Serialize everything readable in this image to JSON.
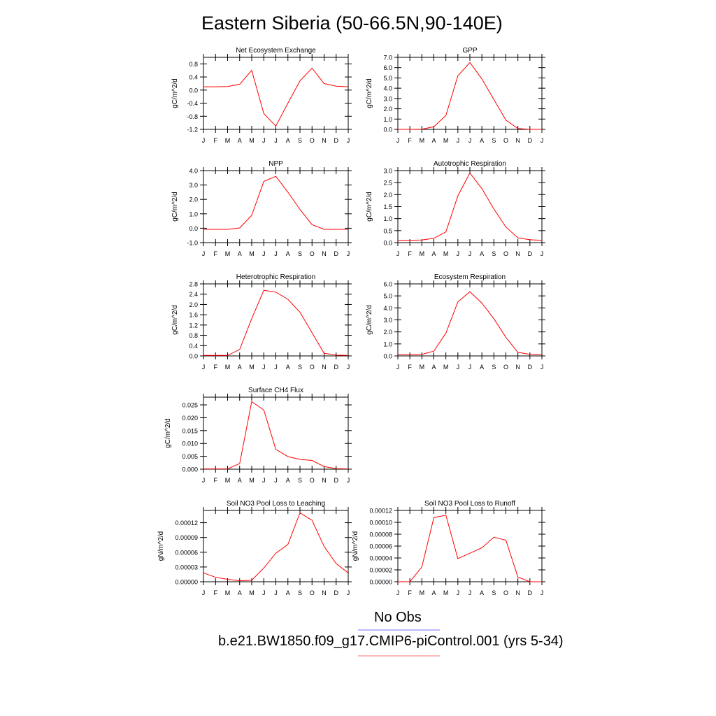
{
  "title": "Eastern Siberia (50-66.5N,90-140E)",
  "month_labels": [
    "J",
    "F",
    "M",
    "A",
    "M",
    "J",
    "J",
    "A",
    "S",
    "O",
    "N",
    "D",
    "J"
  ],
  "legend": {
    "items": [
      {
        "label": "No Obs",
        "color": "#0000ff"
      },
      {
        "label": "b.e21.BW1850.f09_g17.CMIP6-piControl.001 (yrs 5-34)",
        "color": "#ff0000"
      }
    ]
  },
  "chart_data": [
    {
      "type": "line",
      "title": "Net Ecosystem Exchange",
      "ylabel": "gC/m^2/d",
      "ylim": [
        -1.2,
        1.0
      ],
      "yticks": [
        -1.2,
        -0.8,
        -0.4,
        0.0,
        0.4,
        0.8
      ],
      "ytick_labels": [
        "-1.2",
        "-0.8",
        "-0.4",
        "0.0",
        "0.4",
        "0.8"
      ],
      "series": [
        {
          "color": "#ff0000",
          "values": [
            0.1,
            0.1,
            0.11,
            0.18,
            0.6,
            -0.72,
            -1.1,
            -0.4,
            0.28,
            0.67,
            0.2,
            0.12,
            0.1
          ]
        }
      ]
    },
    {
      "type": "line",
      "title": "GPP",
      "ylabel": "gC/m^2/d",
      "ylim": [
        0.0,
        7.0
      ],
      "yticks": [
        0,
        1,
        2,
        3,
        4,
        5,
        6,
        7
      ],
      "ytick_labels": [
        "0.0",
        "1.0",
        "2.0",
        "3.0",
        "4.0",
        "5.0",
        "6.0",
        "7.0"
      ],
      "series": [
        {
          "color": "#ff0000",
          "values": [
            0.0,
            0.0,
            0.02,
            0.25,
            1.35,
            5.2,
            6.5,
            4.9,
            2.9,
            0.9,
            0.08,
            0.0,
            0.0
          ]
        }
      ]
    },
    {
      "type": "line",
      "title": "NPP",
      "ylabel": "gC/m^2/d",
      "ylim": [
        -1.0,
        4.0
      ],
      "yticks": [
        -1,
        0,
        1,
        2,
        3,
        4
      ],
      "ytick_labels": [
        "-1.0",
        "0.0",
        "1.0",
        "2.0",
        "3.0",
        "4.0"
      ],
      "series": [
        {
          "color": "#ff0000",
          "values": [
            -0.08,
            -0.08,
            -0.08,
            0.02,
            0.9,
            3.25,
            3.6,
            2.5,
            1.3,
            0.25,
            -0.08,
            -0.08,
            -0.08
          ]
        }
      ]
    },
    {
      "type": "line",
      "title": "Autotrophic Respiration",
      "ylabel": "gC/m^2/d",
      "ylim": [
        0.0,
        3.0
      ],
      "yticks": [
        0,
        0.5,
        1,
        1.5,
        2,
        2.5,
        3
      ],
      "ytick_labels": [
        "0.0",
        "0.5",
        "1.0",
        "1.5",
        "2.0",
        "2.5",
        "3.0"
      ],
      "series": [
        {
          "color": "#ff0000",
          "values": [
            0.1,
            0.1,
            0.11,
            0.18,
            0.45,
            1.95,
            2.9,
            2.25,
            1.4,
            0.65,
            0.2,
            0.12,
            0.1
          ]
        }
      ]
    },
    {
      "type": "line",
      "title": "Heterotrophic Respiration",
      "ylabel": "gC/m^2/d",
      "ylim": [
        0.0,
        2.8
      ],
      "yticks": [
        0,
        0.4,
        0.8,
        1.2,
        1.6,
        2.0,
        2.4,
        2.8
      ],
      "ytick_labels": [
        "0.0",
        "0.4",
        "0.8",
        "1.2",
        "1.6",
        "2.0",
        "2.4",
        "2.8"
      ],
      "series": [
        {
          "color": "#ff0000",
          "values": [
            0.02,
            0.02,
            0.02,
            0.25,
            1.45,
            2.55,
            2.48,
            2.2,
            1.7,
            0.9,
            0.1,
            0.03,
            0.02
          ]
        }
      ]
    },
    {
      "type": "line",
      "title": "Ecosystem Respiration",
      "ylabel": "gC/m^2/d",
      "ylim": [
        0.0,
        6.0
      ],
      "yticks": [
        0,
        1,
        2,
        3,
        4,
        5,
        6
      ],
      "ytick_labels": [
        "0.0",
        "1.0",
        "2.0",
        "3.0",
        "4.0",
        "5.0",
        "6.0"
      ],
      "series": [
        {
          "color": "#ff0000",
          "values": [
            0.1,
            0.1,
            0.12,
            0.4,
            1.9,
            4.5,
            5.35,
            4.4,
            3.1,
            1.55,
            0.3,
            0.13,
            0.1
          ]
        }
      ]
    },
    {
      "type": "line",
      "title": "Surface CH4 Flux",
      "ylabel": "gC/m^2/d",
      "ylim": [
        0.0,
        0.028
      ],
      "yticks": [
        0,
        0.005,
        0.01,
        0.015,
        0.02,
        0.025
      ],
      "ytick_labels": [
        "0.000",
        "0.005",
        "0.010",
        "0.015",
        "0.020",
        "0.025"
      ],
      "series": [
        {
          "color": "#ff0000",
          "values": [
            0.0001,
            0.0001,
            0.0001,
            0.0022,
            0.0263,
            0.023,
            0.0077,
            0.0049,
            0.0038,
            0.0034,
            0.001,
            0.0002,
            0.0001
          ]
        }
      ]
    },
    {
      "type": "line",
      "title": "Soil NO3 Pool Loss to Leaching",
      "ylabel": "gN/m^2/d",
      "ylim": [
        0.0,
        0.000145
      ],
      "yticks": [
        0,
        3e-05,
        6e-05,
        9e-05,
        0.00012
      ],
      "ytick_labels": [
        "0.00000",
        "0.00003",
        "0.00006",
        "0.00009",
        "0.00012"
      ],
      "series": [
        {
          "color": "#ff0000",
          "values": [
            1.8e-05,
            9e-06,
            5e-06,
            2e-06,
            3e-06,
            2.8e-05,
            5.8e-05,
            7.6e-05,
            0.00014,
            0.000125,
            7.2e-05,
            3.7e-05,
            1.8e-05
          ]
        }
      ]
    },
    {
      "type": "line",
      "title": "Soil NO3 Pool Loss to Runoff",
      "ylabel": "gN/m^2/d",
      "ylim": [
        0.0,
        0.00012
      ],
      "yticks": [
        0,
        2e-05,
        4e-05,
        6e-05,
        8e-05,
        0.0001,
        0.00012
      ],
      "ytick_labels": [
        "0.00000",
        "0.00002",
        "0.00004",
        "0.00006",
        "0.00008",
        "0.00010",
        "0.00012"
      ],
      "series": [
        {
          "color": "#ff0000",
          "values": [
            0.0,
            0.0,
            2.5e-05,
            0.000108,
            0.000112,
            3.9e-05,
            4.8e-05,
            5.7e-05,
            7.5e-05,
            7e-05,
            8e-06,
            0.0,
            0.0
          ]
        }
      ]
    }
  ]
}
